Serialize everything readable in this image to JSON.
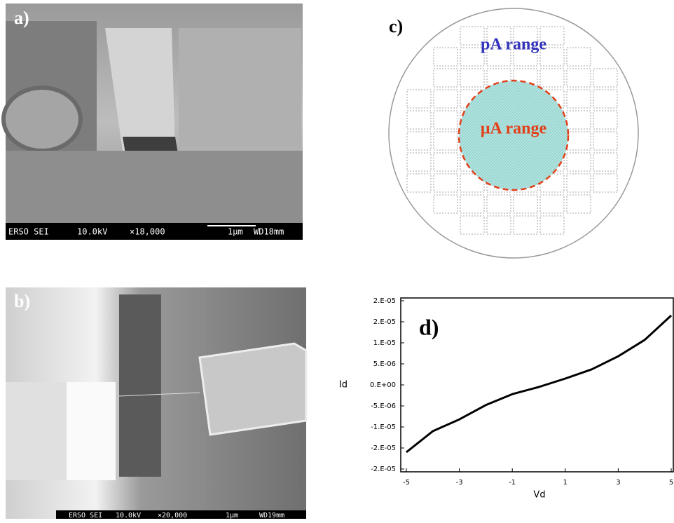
{
  "panels": {
    "a": {
      "label": "a)",
      "caption": [
        "ERSO SEI",
        "10.0kV",
        "×18,000",
        "1μm",
        "WD18mm"
      ]
    },
    "b": {
      "label": "b)",
      "caption": [
        "ERSO SEI",
        "10.0kV",
        "×20,000",
        "1μm",
        "WD19mm"
      ]
    },
    "c": {
      "label": "c)",
      "outer_label": "pA range",
      "inner_label": "μA range"
    }
  },
  "chart_data": {
    "type": "line",
    "annotation": "d)",
    "x_label": "Vd",
    "y_label": "Id",
    "x": [
      -5,
      -4,
      -3,
      -2,
      -1,
      0,
      1,
      2,
      3,
      4,
      5
    ],
    "values": [
      -1.6e-05,
      -1.1e-05,
      -8.2e-06,
      -4.8e-06,
      -2.2e-06,
      -5e-07,
      1.5e-06,
      3.7e-06,
      6.8e-06,
      1.07e-05,
      1.65e-05
    ],
    "color": "#000000",
    "xlim": [
      -5,
      5
    ],
    "xticks": [
      -5,
      -3,
      -1,
      1,
      3,
      5
    ],
    "ylim": [
      -2e-05,
      2e-05
    ],
    "yticks": [
      {
        "value": 2e-05,
        "label": "2.E-05"
      },
      {
        "value": 1.5e-05,
        "label": "2.E-05"
      },
      {
        "value": 1e-05,
        "label": "1.E-05"
      },
      {
        "value": 5e-06,
        "label": "5.E-06"
      },
      {
        "value": 0,
        "label": "0.E+00"
      },
      {
        "value": -5e-06,
        "label": "-5.E-06"
      },
      {
        "value": -1e-05,
        "label": "-1.E-05"
      },
      {
        "value": -1.5e-05,
        "label": "-2.E-05"
      },
      {
        "value": -2e-05,
        "label": "-2.E-05"
      }
    ]
  }
}
